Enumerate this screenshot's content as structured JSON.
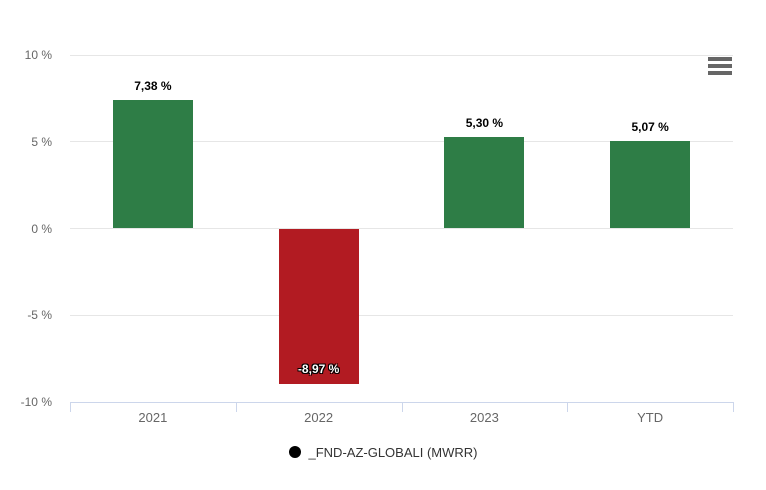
{
  "chart_data": {
    "type": "bar",
    "title": "",
    "xlabel": "",
    "ylabel": "",
    "categories": [
      "2021",
      "2022",
      "2023",
      "YTD"
    ],
    "series": [
      {
        "name": "_FND-AZ-GLOBALI (MWRR)",
        "values": [
          7.38,
          -8.97,
          5.3,
          5.07
        ],
        "value_labels": [
          "7,38 %",
          "-8,97 %",
          "5,30 %",
          "5,07 %"
        ]
      }
    ],
    "ylim": [
      -10,
      10
    ],
    "yticks": [
      {
        "value": 10,
        "label": "10 %"
      },
      {
        "value": 5,
        "label": "5 %"
      },
      {
        "value": 0,
        "label": "0 %"
      },
      {
        "value": -5,
        "label": "-5 %"
      },
      {
        "value": -10,
        "label": "-10 %"
      }
    ],
    "grid": true,
    "legend_position": "bottom",
    "colors": {
      "positive_bar": "#2e7d46",
      "negative_bar": "#b21b22",
      "gridline": "#e6e6e6",
      "axis_line": "#ccd6eb",
      "axis_text": "#666666",
      "legend_text": "#333333",
      "menu_icon": "#666666",
      "legend_marker": "#000000"
    }
  },
  "legend": {
    "label": "_FND-AZ-GLOBALI (MWRR)",
    "marker_color": "#000000"
  },
  "menu": {
    "icon": "hamburger-menu-icon"
  }
}
